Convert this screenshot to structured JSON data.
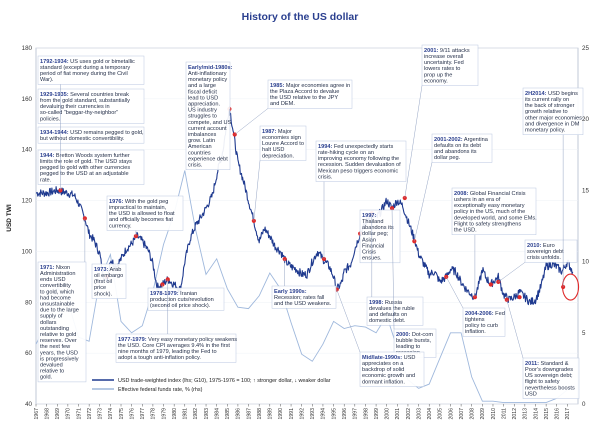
{
  "chart_data": {
    "type": "line",
    "title": "History of the US dollar",
    "ylabel": "USD TWI",
    "ylim": [
      40,
      180
    ],
    "y2lim": [
      0,
      25
    ],
    "yticks": [
      40,
      60,
      80,
      100,
      120,
      140,
      160,
      180
    ],
    "y2ticks": [
      0,
      5,
      10,
      15,
      20,
      25
    ],
    "xlim": [
      1967,
      2018
    ],
    "xtick_labels": [
      "1967",
      "1968",
      "1969",
      "1970",
      "1971",
      "1972",
      "1973",
      "1974",
      "1975",
      "1976",
      "1977",
      "1978",
      "1979",
      "1980",
      "1981",
      "1982",
      "1983",
      "1984",
      "1985",
      "1986",
      "1987",
      "1988",
      "1989",
      "1990",
      "1991",
      "1992",
      "1993",
      "1994",
      "1995",
      "1996",
      "1997",
      "1998",
      "1999",
      "2000",
      "2001",
      "2002",
      "2003",
      "2004",
      "2005",
      "2006",
      "2007",
      "2008",
      "2009",
      "2010",
      "2011",
      "2012",
      "2013",
      "2014",
      "2015",
      "2016",
      "2017"
    ],
    "series": [
      {
        "name": "USD trade-weighted index (lhs; G10), 1975-1976 = 100; ↑ stronger dollar, ↓ weaker dollar",
        "color": "#1f3a8f",
        "x": [
          1967,
          1968,
          1969,
          1970,
          1970.6,
          1971,
          1971.6,
          1972,
          1972.5,
          1973,
          1973.3,
          1973.7,
          1974,
          1974.5,
          1975,
          1975.5,
          1976,
          1976.5,
          1977,
          1977.6,
          1978,
          1978.4,
          1978.9,
          1979.4,
          1980,
          1980.6,
          1981,
          1981.5,
          1982,
          1982.6,
          1983,
          1983.6,
          1984,
          1984.6,
          1985,
          1985.2,
          1985.6,
          1986,
          1986.5,
          1987,
          1987.5,
          1988,
          1988.5,
          1989,
          1989.5,
          1990,
          1990.5,
          1991,
          1991.5,
          1992,
          1992.5,
          1993,
          1993.5,
          1994,
          1994.6,
          1995,
          1995.3,
          1995.8,
          1996,
          1996.6,
          1997,
          1997.5,
          1998,
          1998.5,
          1999,
          1999.5,
          2000,
          2000.5,
          2001,
          2001.5,
          2002,
          2002.6,
          2003,
          2003.5,
          2004,
          2004.5,
          2005,
          2005.6,
          2006,
          2006.5,
          2007,
          2007.5,
          2008,
          2008.3,
          2008.8,
          2009,
          2009.3,
          2009.8,
          2010,
          2010.5,
          2011,
          2011.5,
          2012,
          2012.5,
          2013,
          2013.5,
          2014,
          2014.5,
          2015,
          2015.5,
          2016,
          2016.5,
          2017,
          2017.5
        ],
        "values": [
          123,
          123,
          124,
          123,
          122,
          119,
          113,
          107,
          104,
          99,
          91,
          89,
          97,
          94,
          97,
          101,
          103,
          106,
          104,
          100,
          95,
          86,
          87,
          89,
          87,
          85,
          96,
          105,
          110,
          114,
          117,
          122,
          130,
          140,
          152,
          157,
          146,
          135,
          128,
          120,
          112,
          104,
          109,
          106,
          102,
          100,
          96,
          94,
          93,
          91,
          91,
          96,
          100,
          97,
          94,
          90,
          85,
          88,
          92,
          95,
          101,
          107,
          111,
          115,
          113,
          116,
          120,
          117,
          120,
          118,
          112,
          105,
          99,
          95,
          91,
          92,
          88,
          90,
          93,
          92,
          88,
          85,
          83,
          82,
          89,
          93,
          90,
          87,
          88,
          90,
          83,
          81,
          82,
          84,
          82,
          80,
          81,
          86,
          94,
          95,
          94,
          92,
          96,
          92
        ]
      },
      {
        "name": "Effective federal funds rate, % (rhs)",
        "color": "#9fb8dc",
        "x": [
          1967,
          1968,
          1969,
          1970,
          1971,
          1972,
          1973,
          1974,
          1975,
          1976,
          1977,
          1978,
          1979,
          1980,
          1981,
          1982,
          1983,
          1984,
          1985,
          1986,
          1987,
          1988,
          1989,
          1990,
          1991,
          1992,
          1993,
          1994,
          1995,
          1996,
          1997,
          1998,
          1999,
          2000,
          2001,
          2002,
          2003,
          2004,
          2005,
          2006,
          2007,
          2008,
          2009,
          2010,
          2011,
          2012,
          2013,
          2014,
          2015,
          2016,
          2017
        ],
        "values": [
          4.2,
          5.7,
          8.2,
          7.2,
          4.7,
          4.4,
          8.7,
          10.5,
          5.8,
          5.0,
          5.5,
          7.9,
          11.2,
          13.4,
          16.4,
          12.3,
          9.1,
          10.2,
          8.1,
          6.8,
          6.7,
          7.6,
          9.2,
          8.1,
          5.7,
          3.5,
          3.0,
          4.2,
          5.8,
          5.3,
          5.5,
          5.4,
          5.0,
          6.2,
          3.9,
          1.7,
          1.1,
          1.4,
          3.2,
          5.0,
          5.0,
          1.9,
          0.2,
          0.2,
          0.1,
          0.1,
          0.1,
          0.1,
          0.1,
          0.4,
          1.0
        ]
      }
    ],
    "highlight_points": [
      {
        "x": 1969.3,
        "y": 124
      },
      {
        "x": 1971.6,
        "y": 113
      },
      {
        "x": 1973.7,
        "y": 90
      },
      {
        "x": 1976.4,
        "y": 106
      },
      {
        "x": 1978.9,
        "y": 87
      },
      {
        "x": 1979.4,
        "y": 89
      },
      {
        "x": 1985.2,
        "y": 156
      },
      {
        "x": 1985.7,
        "y": 146
      },
      {
        "x": 1987.5,
        "y": 112
      },
      {
        "x": 1990.4,
        "y": 97
      },
      {
        "x": 1994.1,
        "y": 97
      },
      {
        "x": 1995.3,
        "y": 85
      },
      {
        "x": 1997.5,
        "y": 107
      },
      {
        "x": 1998.6,
        "y": 115
      },
      {
        "x": 2000.5,
        "y": 117
      },
      {
        "x": 2001.7,
        "y": 121
      },
      {
        "x": 2002.6,
        "y": 104
      },
      {
        "x": 2005.6,
        "y": 90
      },
      {
        "x": 2008.3,
        "y": 82
      },
      {
        "x": 2009.8,
        "y": 87
      },
      {
        "x": 2010.5,
        "y": 88
      },
      {
        "x": 2011.3,
        "y": 81
      },
      {
        "x": 2012.5,
        "y": 82
      },
      {
        "x": 2016.6,
        "y": 86
      }
    ],
    "circle_point": {
      "x": 2017.3,
      "y": 86
    },
    "annotations": [
      {
        "key": "1792-1934:",
        "text": "US uses gold or bimetallic standard (except during a temporary period of fiat money during the Civil War)."
      },
      {
        "key": "1929-1935:",
        "text": "Several countries break from the gold standard, substantially devaluing their currencies in so-called “beggar-thy-neighbor” policies."
      },
      {
        "key": "1934-1944:",
        "text": "USD remains pegged to gold, but without domestic convertibility."
      },
      {
        "key": "1944:",
        "text": "Bretton Woods system further limits the role of gold. The USD stays pegged to gold with other currencies pegged to the USD at an adjustable rate."
      },
      {
        "key": "1971:",
        "text": "Nixon Administration ends USD convertibility to gold, which had become unsustainable due to the large supply of dollars outstanding relative to gold reserves. Over the next few years, the USD is progressively devalued relative to gold."
      },
      {
        "key": "1976:",
        "text": "With the gold peg impractical to maintain, the USD is allowed to float and officially becomes fiat currency."
      },
      {
        "key": "1973:",
        "text": "Arab oil embargo (first oil price shock)."
      },
      {
        "key": "1978-1979:",
        "text": "Iranian production cuts/revolution (second oil price shock)."
      },
      {
        "key": "1977-1979:",
        "text": "Very easy monetary policy weakens the USD. Core CPI averages 9.4% in the first nine months of 1979, leading the Fed to adopt a tough anti-inflation policy."
      },
      {
        "key": "Early/mid-1980s:",
        "text": "Anti-inflationary monetary policy and a large fiscal deficit lead to USD appreciation. US industry struggles to compete, and US current account imbalances grow. Latin American countries experience debt crisis."
      },
      {
        "key": "1985:",
        "text": "Major economies agree in the Plaza Accord to devalue the USD relative to the JPY and DEM."
      },
      {
        "key": "1987:",
        "text": "Major economies sign Louvre Accord to halt USD depreciation."
      },
      {
        "key": "1994:",
        "text": "Fed unexpectedly starts rate-hiking cycle on an improving economy following the recession. Sudden devaluation of Mexican peso triggers economic crisis."
      },
      {
        "key": "Early 1990s:",
        "text": "Recession; rates fall and the USD weakens."
      },
      {
        "key": "1997:",
        "text": "Thailand abandons its dollar peg; Asian Financial Crisis ensues."
      },
      {
        "key": "1998:",
        "text": "Russia devalues the ruble and defaults on domestic debt."
      },
      {
        "key": "2000:",
        "text": "Dot-com bubble bursts, leading to recession."
      },
      {
        "key": "Mid/late-1990s:",
        "text": "USD appreciates on a backdrop of solid economic growth and dormant inflation."
      },
      {
        "key": "2001:",
        "text": "9/11 attacks increase overall uncertainty. Fed lowers rates to prop up the economy."
      },
      {
        "key": "2001-2002:",
        "text": "Argentina defaults on its debt and abandons its dollar peg."
      },
      {
        "key": "2004-2006:",
        "text": "Fed tightens policy to curb inflation."
      },
      {
        "key": "2008:",
        "text": "Global Financial Crisis ushers in an era of exceptionally easy monetary policy in the US, much of the developed world, and some EMs. Flight to safety strengthens the USD."
      },
      {
        "key": "2010:",
        "text": "Euro sovereign debt crisis unfolds."
      },
      {
        "key": "2H2014:",
        "text": "USD begins its current rally on the back of stronger growth relative to other major economies and divergence in DM monetary policy."
      },
      {
        "key": "2011:",
        "text": "Standard & Poor’s downgrades US sovereign debt; flight to safety nevertheless boosts USD"
      }
    ]
  },
  "colors": {
    "line": "#1f3a8f",
    "rate": "#9fb8dc",
    "dot": "#e02b2b",
    "circle": "#e02b2b",
    "box": "#ffffff",
    "box_border": "#b9c7e0",
    "ann_key": "#2a3f8f"
  }
}
